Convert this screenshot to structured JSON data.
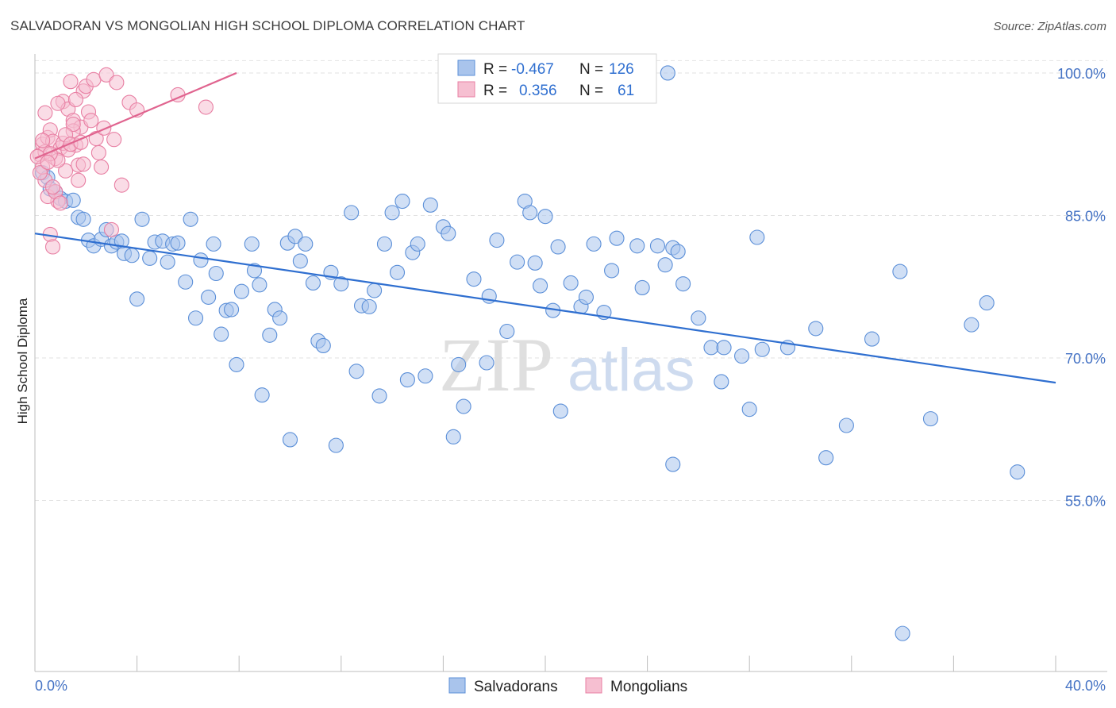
{
  "header": {
    "title": "SALVADORAN VS MONGOLIAN HIGH SCHOOL DIPLOMA CORRELATION CHART",
    "source": "Source: ZipAtlas.com"
  },
  "watermark": {
    "zip": "ZIP",
    "atlas": "atlas"
  },
  "legend": {
    "r_label": "R =",
    "n_label": "N =",
    "rows": [
      {
        "name": "Salvadorans",
        "r": "-0.467",
        "n": "126",
        "color": "#5b8fd8"
      },
      {
        "name": "Mongolians",
        "r": "0.356",
        "n": "61",
        "color": "#e87fa3"
      }
    ]
  },
  "chart_data": {
    "type": "scatter",
    "title": "SALVADORAN VS MONGOLIAN HIGH SCHOOL DIPLOMA CORRELATION CHART",
    "xlabel": "",
    "ylabel": "High School Diploma",
    "xlim": [
      0,
      40
    ],
    "ylim": [
      37,
      102
    ],
    "x_tick_labels": [
      "0.0%",
      "40.0%"
    ],
    "y_ticks": [
      55,
      70,
      85,
      100
    ],
    "y_tick_labels": [
      "55.0%",
      "70.0%",
      "85.0%",
      "100.0%"
    ],
    "grid": true,
    "legend_position": "top-center",
    "series": [
      {
        "name": "Salvadorans",
        "color": "#5b8fd8",
        "fill": "#a9c4ec",
        "trend": {
          "x": [
            0,
            40
          ],
          "y": [
            83.1,
            67.4
          ]
        },
        "points": [
          [
            0.3,
            89.5
          ],
          [
            0.5,
            89.0
          ],
          [
            0.6,
            87.8
          ],
          [
            0.8,
            87.5
          ],
          [
            1.0,
            86.8
          ],
          [
            1.2,
            86.5
          ],
          [
            1.5,
            86.6
          ],
          [
            1.7,
            84.8
          ],
          [
            1.9,
            84.6
          ],
          [
            2.1,
            82.4
          ],
          [
            2.3,
            81.8
          ],
          [
            2.6,
            82.5
          ],
          [
            2.8,
            83.5
          ],
          [
            3.0,
            81.8
          ],
          [
            3.2,
            82.2
          ],
          [
            3.4,
            82.3
          ],
          [
            3.5,
            81.0
          ],
          [
            3.8,
            80.8
          ],
          [
            4.0,
            76.2
          ],
          [
            4.2,
            84.6
          ],
          [
            4.5,
            80.5
          ],
          [
            4.7,
            82.2
          ],
          [
            5.0,
            82.3
          ],
          [
            5.2,
            80.1
          ],
          [
            5.4,
            82.0
          ],
          [
            5.6,
            82.1
          ],
          [
            5.9,
            78.0
          ],
          [
            6.1,
            84.6
          ],
          [
            6.3,
            74.2
          ],
          [
            6.5,
            80.3
          ],
          [
            6.8,
            76.4
          ],
          [
            7.0,
            82.0
          ],
          [
            7.1,
            78.9
          ],
          [
            7.3,
            72.5
          ],
          [
            7.5,
            75.0
          ],
          [
            7.7,
            75.1
          ],
          [
            7.9,
            69.3
          ],
          [
            8.1,
            77.0
          ],
          [
            8.5,
            82.0
          ],
          [
            8.6,
            79.2
          ],
          [
            8.8,
            77.7
          ],
          [
            8.9,
            66.1
          ],
          [
            9.2,
            72.4
          ],
          [
            9.4,
            75.1
          ],
          [
            9.6,
            74.2
          ],
          [
            9.9,
            82.1
          ],
          [
            10.0,
            61.4
          ],
          [
            10.2,
            82.8
          ],
          [
            10.4,
            80.2
          ],
          [
            10.6,
            82.0
          ],
          [
            10.9,
            77.9
          ],
          [
            11.1,
            71.8
          ],
          [
            11.3,
            71.3
          ],
          [
            11.6,
            79.0
          ],
          [
            11.8,
            60.8
          ],
          [
            12.0,
            77.8
          ],
          [
            12.4,
            85.3
          ],
          [
            12.6,
            68.6
          ],
          [
            12.8,
            75.5
          ],
          [
            13.1,
            75.4
          ],
          [
            13.3,
            77.1
          ],
          [
            13.5,
            66.0
          ],
          [
            13.7,
            82.0
          ],
          [
            14.0,
            85.3
          ],
          [
            14.2,
            79.0
          ],
          [
            14.4,
            86.5
          ],
          [
            14.6,
            67.7
          ],
          [
            14.8,
            81.1
          ],
          [
            15.0,
            82.0
          ],
          [
            15.3,
            68.1
          ],
          [
            15.5,
            86.1
          ],
          [
            16.0,
            83.8
          ],
          [
            16.2,
            83.1
          ],
          [
            16.4,
            61.7
          ],
          [
            16.6,
            69.3
          ],
          [
            16.8,
            64.9
          ],
          [
            17.2,
            78.3
          ],
          [
            17.7,
            69.5
          ],
          [
            17.8,
            76.5
          ],
          [
            18.1,
            82.4
          ],
          [
            18.5,
            72.8
          ],
          [
            18.9,
            80.1
          ],
          [
            19.2,
            86.5
          ],
          [
            19.4,
            85.3
          ],
          [
            19.6,
            80.0
          ],
          [
            19.8,
            77.6
          ],
          [
            20.0,
            84.9
          ],
          [
            20.3,
            75.0
          ],
          [
            20.5,
            81.7
          ],
          [
            20.6,
            64.4
          ],
          [
            21.0,
            77.9
          ],
          [
            21.4,
            75.4
          ],
          [
            21.6,
            76.4
          ],
          [
            21.9,
            82.0
          ],
          [
            22.3,
            74.8
          ],
          [
            22.6,
            79.2
          ],
          [
            22.8,
            82.6
          ],
          [
            23.6,
            81.8
          ],
          [
            23.8,
            77.4
          ],
          [
            24.4,
            81.8
          ],
          [
            24.7,
            79.8
          ],
          [
            25.0,
            81.6
          ],
          [
            25.2,
            81.2
          ],
          [
            25.4,
            77.8
          ],
          [
            24.8,
            100.0
          ],
          [
            25.0,
            58.8
          ],
          [
            26.0,
            74.2
          ],
          [
            26.5,
            71.1
          ],
          [
            26.9,
            67.5
          ],
          [
            27.0,
            71.1
          ],
          [
            27.7,
            70.2
          ],
          [
            28.0,
            64.6
          ],
          [
            28.3,
            82.7
          ],
          [
            28.5,
            70.9
          ],
          [
            29.5,
            71.1
          ],
          [
            30.6,
            73.1
          ],
          [
            31.0,
            59.5
          ],
          [
            31.8,
            62.9
          ],
          [
            32.8,
            72.0
          ],
          [
            33.9,
            79.1
          ],
          [
            34.0,
            41.0
          ],
          [
            35.1,
            63.6
          ],
          [
            36.7,
            73.5
          ],
          [
            37.3,
            75.8
          ],
          [
            38.5,
            58.0
          ]
        ]
      },
      {
        "name": "Mongolians",
        "color": "#e87fa3",
        "fill": "#f6bfd1",
        "trend": {
          "x": [
            0,
            7.9
          ],
          "y": [
            91.0,
            100.0
          ]
        },
        "points": [
          [
            0.2,
            91.4
          ],
          [
            0.3,
            92.5
          ],
          [
            0.4,
            88.7
          ],
          [
            0.5,
            93.2
          ],
          [
            0.6,
            94.0
          ],
          [
            0.7,
            92.8
          ],
          [
            0.8,
            91.0
          ],
          [
            0.9,
            86.5
          ],
          [
            1.0,
            92.1
          ],
          [
            1.1,
            97.0
          ],
          [
            1.2,
            89.7
          ],
          [
            1.3,
            96.2
          ],
          [
            1.4,
            99.1
          ],
          [
            1.5,
            95.0
          ],
          [
            1.6,
            92.4
          ],
          [
            1.7,
            90.3
          ],
          [
            1.8,
            94.3
          ],
          [
            1.9,
            98.1
          ],
          [
            2.0,
            98.6
          ],
          [
            2.1,
            95.9
          ],
          [
            2.3,
            99.3
          ],
          [
            2.5,
            91.6
          ],
          [
            2.6,
            90.1
          ],
          [
            2.8,
            99.8
          ],
          [
            3.0,
            83.5
          ],
          [
            3.1,
            93.0
          ],
          [
            3.4,
            88.2
          ],
          [
            3.7,
            96.9
          ],
          [
            4.0,
            96.1
          ],
          [
            5.6,
            97.7
          ],
          [
            6.7,
            96.4
          ],
          [
            3.2,
            99.0
          ],
          [
            1.5,
            93.9
          ],
          [
            0.6,
            83.0
          ],
          [
            0.7,
            81.7
          ],
          [
            0.3,
            90.1
          ],
          [
            0.4,
            91.7
          ],
          [
            0.9,
            90.8
          ],
          [
            1.1,
            92.6
          ],
          [
            1.3,
            91.9
          ],
          [
            1.5,
            94.6
          ],
          [
            1.7,
            88.7
          ],
          [
            1.9,
            90.4
          ],
          [
            2.2,
            95.0
          ],
          [
            0.5,
            87.0
          ],
          [
            0.8,
            87.5
          ],
          [
            1.0,
            86.3
          ],
          [
            0.2,
            89.5
          ],
          [
            0.6,
            91.5
          ],
          [
            1.2,
            93.5
          ],
          [
            1.6,
            97.2
          ],
          [
            2.4,
            93.1
          ],
          [
            0.4,
            95.8
          ],
          [
            0.9,
            96.8
          ],
          [
            2.7,
            94.2
          ],
          [
            0.3,
            92.9
          ],
          [
            1.4,
            92.5
          ],
          [
            0.1,
            91.2
          ],
          [
            0.5,
            90.6
          ],
          [
            1.8,
            92.7
          ],
          [
            0.7,
            88.0
          ]
        ]
      }
    ]
  }
}
